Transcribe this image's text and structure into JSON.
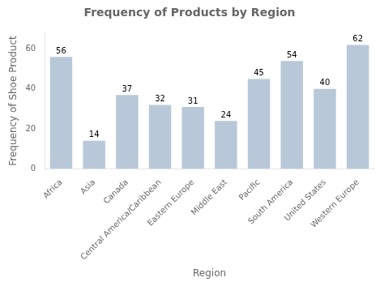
{
  "chart_data": {
    "type": "bar",
    "title": "Frequency of Products by Region",
    "xlabel": "Region",
    "ylabel": "Frequency of Shoe Product",
    "categories": [
      "Africa",
      "Asia",
      "Canada",
      "Central America/Caribbean",
      "Eastern Europe",
      "Middle East",
      "Pacific",
      "South America",
      "United States",
      "Western Europe"
    ],
    "values": [
      56,
      14,
      37,
      32,
      31,
      24,
      45,
      54,
      40,
      62
    ],
    "color": "#b8c8d8",
    "ylim": [
      0,
      68
    ],
    "yticks": [
      0,
      20,
      40,
      60
    ],
    "grid": false,
    "data_labels": true
  }
}
